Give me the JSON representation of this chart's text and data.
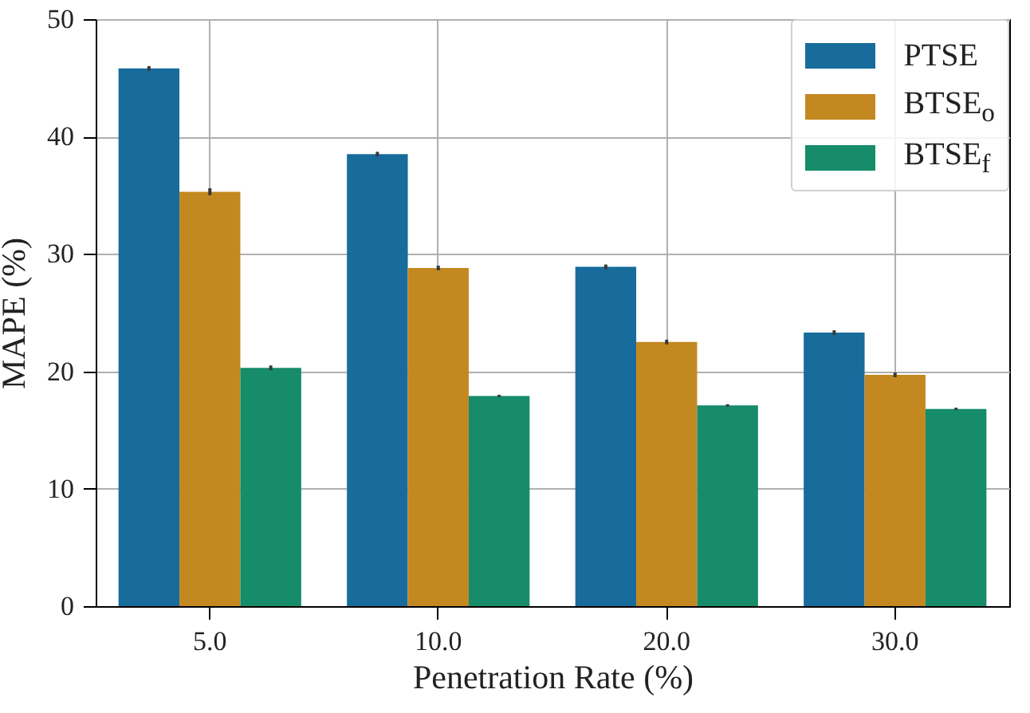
{
  "chart_data": {
    "type": "bar",
    "xlabel": "Penetration Rate (%)",
    "ylabel": "MAPE (%)",
    "categories": [
      "5.0",
      "10.0",
      "20.0",
      "30.0"
    ],
    "series": [
      {
        "name": "PTSE",
        "color": "#176c9c",
        "values": [
          45.8,
          38.5,
          28.9,
          23.3
        ],
        "errors": [
          0.2,
          0.2,
          0.2,
          0.2
        ]
      },
      {
        "name": "BTSE$_{o}$",
        "color": "#c38820",
        "values": [
          35.3,
          28.8,
          22.5,
          19.7
        ],
        "errors": [
          0.3,
          0.2,
          0.2,
          0.2
        ]
      },
      {
        "name": "BTSE$_{f}$",
        "color": "#168c6a",
        "values": [
          20.3,
          17.9,
          17.1,
          16.8
        ],
        "errors": [
          0.2,
          0.1,
          0.1,
          0.1
        ]
      }
    ],
    "ylim": [
      0,
      50
    ],
    "yticks": [
      0,
      10,
      20,
      30,
      40,
      50
    ],
    "grid": true,
    "legend": "top right"
  }
}
